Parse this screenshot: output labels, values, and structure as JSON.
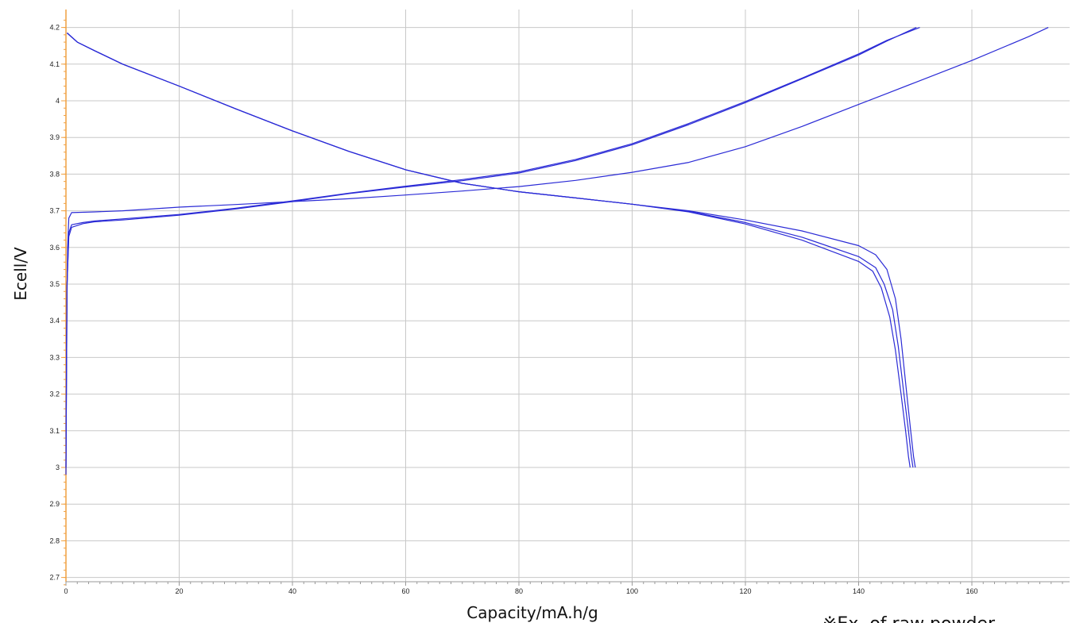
{
  "chart_data": {
    "type": "line",
    "title": "",
    "xlabel": "Capacity/mA.h/g",
    "ylabel": "Ecell/V",
    "xlim": [
      0,
      178
    ],
    "ylim": [
      2.68,
      4.22
    ],
    "x_ticks": [
      0,
      20,
      40,
      60,
      80,
      100,
      120,
      140,
      160
    ],
    "y_ticks": [
      2.7,
      2.8,
      2.9,
      3,
      3.1,
      3.2,
      3.3,
      3.4,
      3.5,
      3.6,
      3.7,
      3.8,
      3.9,
      4,
      4.1,
      4.2
    ],
    "x_tick_labels": [
      "0",
      "20",
      "40",
      "60",
      "80",
      "100",
      "120",
      "140",
      "160"
    ],
    "y_tick_labels": [
      "2.7",
      "2.8",
      "2.9",
      "3",
      "3.1",
      "3.2",
      "3.3",
      "3.4",
      "3.5",
      "3.6",
      "3.7",
      "3.8",
      "3.9",
      "4",
      "4.1",
      "4.2"
    ],
    "grid": true,
    "line_color": "#2b2bd6",
    "axis_color": "#f0a040",
    "series": [
      {
        "x": [
          0,
          0.1,
          0.3,
          0.5,
          1,
          5,
          10,
          20,
          30,
          40,
          50,
          60,
          70,
          80,
          90,
          100,
          110,
          120,
          130,
          140,
          145,
          150,
          160,
          170,
          173.5
        ],
        "y": [
          2.98,
          3.35,
          3.6,
          3.68,
          3.695,
          3.697,
          3.7,
          3.71,
          3.717,
          3.725,
          3.733,
          3.743,
          3.754,
          3.766,
          3.783,
          3.805,
          3.832,
          3.875,
          3.93,
          3.99,
          4.02,
          4.05,
          4.11,
          4.175,
          4.2
        ]
      },
      {
        "x": [
          0,
          0.2,
          0.5,
          1,
          3,
          5,
          10,
          20,
          30,
          40,
          50,
          60,
          70,
          80,
          90,
          100,
          110,
          120,
          130,
          140,
          145,
          150.2
        ],
        "y": [
          3.0,
          3.5,
          3.63,
          3.655,
          3.665,
          3.67,
          3.675,
          3.688,
          3.705,
          3.725,
          3.747,
          3.765,
          3.782,
          3.803,
          3.837,
          3.88,
          3.935,
          3.995,
          4.06,
          4.125,
          4.163,
          4.2
        ]
      },
      {
        "x": [
          0,
          0.2,
          0.5,
          1,
          3,
          5,
          10,
          20,
          30,
          40,
          50,
          60,
          70,
          80,
          90,
          100,
          110,
          120,
          130,
          140,
          145,
          150.8
        ],
        "y": [
          3.0,
          3.5,
          3.64,
          3.662,
          3.668,
          3.672,
          3.678,
          3.69,
          3.707,
          3.727,
          3.748,
          3.767,
          3.785,
          3.806,
          3.84,
          3.883,
          3.938,
          3.998,
          4.062,
          4.128,
          4.165,
          4.2
        ]
      },
      {
        "x": [
          0.2,
          2,
          5,
          10,
          20,
          30,
          40,
          50,
          60,
          70,
          80,
          90,
          100,
          110,
          120,
          130,
          140,
          143,
          145,
          146.5,
          147.5,
          148.5,
          149.2,
          149.7,
          150
        ],
        "y": [
          4.185,
          4.16,
          4.137,
          4.1,
          4.04,
          3.978,
          3.918,
          3.862,
          3.812,
          3.775,
          3.752,
          3.735,
          3.718,
          3.7,
          3.675,
          3.645,
          3.605,
          3.58,
          3.54,
          3.46,
          3.35,
          3.2,
          3.1,
          3.03,
          3.0
        ]
      },
      {
        "x": [
          0.2,
          2,
          5,
          10,
          20,
          30,
          40,
          50,
          60,
          70,
          80,
          90,
          100,
          110,
          120,
          130,
          140,
          143,
          144.5,
          146,
          147,
          148,
          148.8,
          149.3,
          149.6
        ],
        "y": [
          4.185,
          4.16,
          4.137,
          4.1,
          4.04,
          3.978,
          3.918,
          3.862,
          3.812,
          3.775,
          3.752,
          3.735,
          3.718,
          3.698,
          3.668,
          3.628,
          3.575,
          3.545,
          3.5,
          3.43,
          3.33,
          3.2,
          3.1,
          3.03,
          3.0
        ]
      },
      {
        "x": [
          0.2,
          2,
          5,
          10,
          20,
          30,
          40,
          50,
          60,
          70,
          80,
          90,
          100,
          110,
          120,
          130,
          140,
          142.5,
          144,
          145.5,
          146.5,
          147.5,
          148.3,
          148.8,
          149.1
        ],
        "y": [
          4.185,
          4.16,
          4.137,
          4.1,
          4.04,
          3.978,
          3.918,
          3.862,
          3.812,
          3.775,
          3.752,
          3.735,
          3.718,
          3.697,
          3.664,
          3.62,
          3.562,
          3.535,
          3.49,
          3.41,
          3.32,
          3.2,
          3.1,
          3.03,
          3.0
        ]
      }
    ]
  },
  "footnote": "※Ex. of raw powder"
}
